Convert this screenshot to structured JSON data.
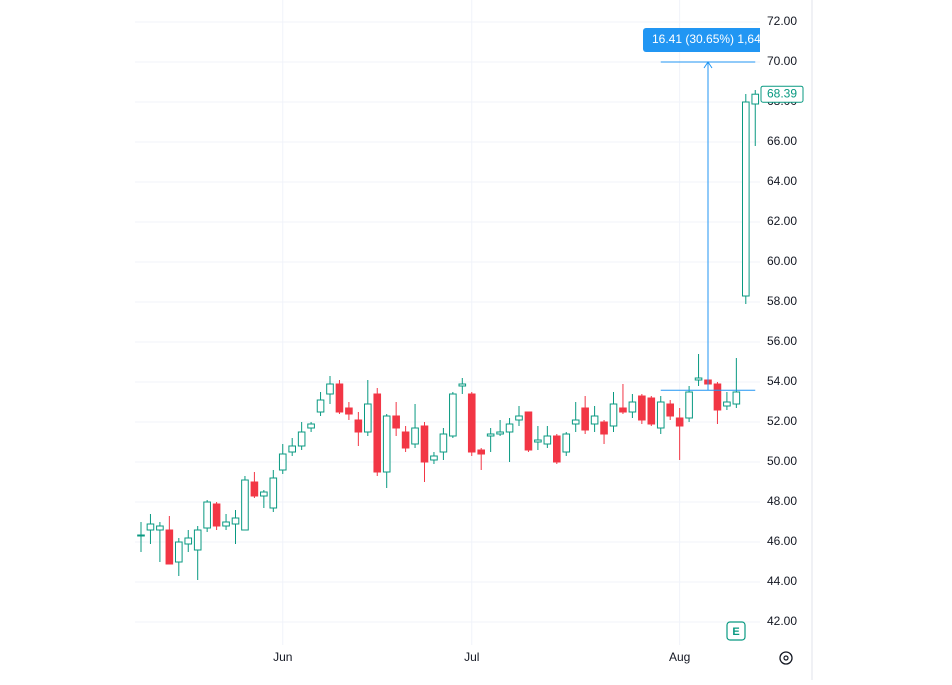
{
  "chart_data": {
    "type": "candlestick",
    "categories": [
      null,
      null,
      null,
      null,
      null,
      null,
      null,
      null,
      null,
      null,
      null,
      null,
      null,
      null,
      null,
      "Jun",
      null,
      null,
      null,
      null,
      null,
      null,
      null,
      null,
      null,
      null,
      null,
      null,
      null,
      null,
      null,
      null,
      null,
      null,
      null,
      "Jul",
      null,
      null,
      null,
      null,
      null,
      null,
      null,
      null,
      null,
      null,
      null,
      null,
      null,
      null,
      null,
      null,
      null,
      null,
      null,
      null,
      null,
      "Aug",
      null,
      null,
      null,
      null,
      null,
      null,
      null,
      null
    ],
    "open": [
      46.3,
      46.6,
      46.6,
      46.6,
      45.0,
      45.9,
      45.6,
      46.7,
      47.9,
      46.8,
      46.9,
      46.6,
      49.0,
      48.3,
      47.7,
      49.6,
      50.5,
      50.8,
      51.7,
      52.5,
      53.4,
      53.9,
      52.7,
      52.1,
      51.5,
      53.4,
      49.5,
      52.3,
      51.5,
      50.9,
      51.8,
      50.1,
      50.5,
      51.3,
      53.8,
      53.4,
      50.6,
      51.3,
      51.4,
      51.5,
      52.1,
      52.5,
      51.0,
      50.9,
      51.3,
      50.5,
      51.9,
      52.7,
      51.9,
      52.0,
      51.8,
      52.7,
      52.5,
      53.3,
      53.2,
      51.7,
      52.9,
      52.2,
      52.2,
      54.1,
      54.1,
      53.9,
      52.8,
      52.9,
      58.3,
      67.9
    ],
    "high": [
      47.0,
      47.4,
      47.0,
      47.3,
      46.2,
      46.6,
      46.8,
      48.1,
      48.0,
      47.4,
      47.6,
      49.3,
      49.5,
      48.6,
      49.6,
      50.9,
      51.2,
      52.0,
      52.0,
      53.5,
      54.3,
      54.1,
      53.0,
      52.5,
      54.1,
      53.7,
      52.4,
      53.0,
      51.8,
      52.9,
      52.0,
      50.5,
      51.7,
      53.5,
      54.2,
      53.5,
      50.7,
      51.7,
      52.1,
      52.2,
      52.8,
      52.5,
      51.8,
      51.8,
      51.4,
      51.5,
      53.0,
      53.3,
      52.8,
      52.1,
      53.5,
      53.9,
      53.4,
      53.4,
      53.3,
      53.3,
      53.1,
      52.7,
      53.8,
      55.4,
      54.2,
      54.0,
      53.5,
      55.2,
      68.4,
      68.6
    ],
    "low": [
      45.5,
      45.9,
      45.0,
      44.9,
      44.3,
      45.5,
      44.1,
      46.5,
      46.6,
      46.6,
      45.9,
      46.6,
      48.2,
      47.7,
      47.5,
      49.4,
      50.3,
      50.6,
      51.5,
      52.3,
      52.9,
      52.4,
      52.1,
      50.8,
      51.3,
      49.3,
      48.7,
      51.3,
      50.5,
      50.7,
      49.0,
      49.9,
      50.1,
      51.2,
      53.4,
      50.3,
      49.6,
      50.5,
      51.3,
      50.0,
      51.8,
      50.5,
      50.6,
      50.7,
      49.9,
      50.3,
      51.5,
      51.4,
      51.5,
      50.9,
      51.5,
      52.4,
      52.2,
      51.9,
      51.8,
      51.4,
      52.1,
      50.1,
      52.0,
      53.8,
      53.6,
      51.9,
      52.6,
      52.7,
      57.9,
      65.8
    ],
    "close": [
      46.35,
      46.9,
      46.8,
      44.9,
      46.0,
      46.2,
      46.6,
      48.0,
      46.8,
      47.0,
      47.2,
      49.1,
      48.3,
      48.5,
      49.2,
      50.4,
      50.8,
      51.5,
      51.9,
      53.1,
      53.9,
      52.5,
      52.4,
      51.5,
      52.9,
      49.5,
      52.3,
      51.7,
      50.7,
      51.7,
      50.0,
      50.3,
      51.4,
      53.4,
      53.9,
      50.5,
      50.4,
      51.4,
      51.5,
      51.9,
      52.3,
      50.6,
      51.1,
      51.3,
      50.0,
      51.4,
      52.1,
      51.6,
      52.3,
      51.4,
      52.9,
      52.5,
      53.0,
      52.1,
      51.9,
      53.0,
      52.3,
      51.8,
      53.5,
      54.2,
      53.9,
      52.6,
      53.0,
      53.5,
      68.0,
      68.39
    ],
    "up_color": "#089981",
    "down_color": "#f23645",
    "ylim": [
      40.85,
      73.1
    ],
    "yticks": [
      {
        "value": 42,
        "label": "42.00"
      },
      {
        "value": 44,
        "label": "44.00"
      },
      {
        "value": 46,
        "label": "46.00"
      },
      {
        "value": 48,
        "label": "48.00"
      },
      {
        "value": 50,
        "label": "50.00"
      },
      {
        "value": 52,
        "label": "52.00"
      },
      {
        "value": 54,
        "label": "54.00"
      },
      {
        "value": 56,
        "label": "56.00"
      },
      {
        "value": 58,
        "label": "58.00"
      },
      {
        "value": 60,
        "label": "60.00"
      },
      {
        "value": 62,
        "label": "62.00"
      },
      {
        "value": 64,
        "label": "64.00"
      },
      {
        "value": 66,
        "label": "66.00"
      },
      {
        "value": 68,
        "label": "68.00"
      },
      {
        "value": 70,
        "label": "70.00"
      },
      {
        "value": 72,
        "label": "72.00"
      }
    ],
    "grid": true,
    "last_price": 68.39,
    "measure": {
      "from": 53.59,
      "to": 70.0,
      "label": "16.41 (30.65%) 1,64",
      "color": "#2196f3"
    }
  }
}
